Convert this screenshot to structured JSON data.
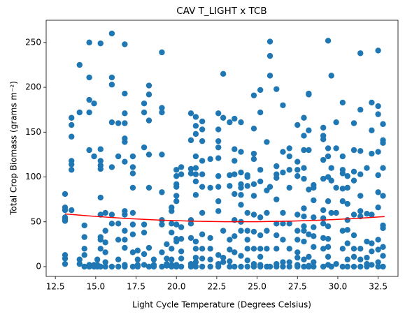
{
  "chart_data": {
    "type": "scatter",
    "title": "CAV T_LIGHT x TCB",
    "xlabel": "Light Cycle Temperature (Degrees Celsius)",
    "ylabel": "Total Crop Biomass (grams m⁻²)",
    "xlim": [
      11.93,
      33.73
    ],
    "ylim": [
      -10.9,
      274.8
    ],
    "xticks": [
      12.5,
      {
        "value": 15,
        "label": "15.0"
      },
      17.5,
      {
        "value": 20,
        "label": "20.0"
      },
      22.5,
      {
        "value": 25,
        "label": "25.0"
      },
      27.5,
      {
        "value": 30,
        "label": "30.0"
      },
      32.5
    ],
    "yticks": [
      0,
      50,
      100,
      150,
      200,
      250
    ],
    "grid": false,
    "series": [
      {
        "kind": "points",
        "color": "#1f77b4",
        "x": [
          13.1,
          13.1,
          13.1,
          13.1,
          13.1,
          13.1,
          13.1,
          13.1,
          13.1,
          13.5,
          13.5,
          13.5,
          13.5,
          13.5,
          13.5,
          13.5,
          14.0,
          14.0,
          14.0,
          14.0,
          14.3,
          14.3,
          14.3,
          14.3,
          14.3,
          14.6,
          14.6,
          14.6,
          14.6,
          14.6,
          14.6,
          14.6,
          14.9,
          14.9,
          14.9,
          14.9,
          15.1,
          15.1,
          15.1,
          15.3,
          15.3,
          15.3,
          15.3,
          15.3,
          15.3,
          15.3,
          15.3,
          15.3,
          15.3,
          15.3,
          15.6,
          15.6,
          15.6,
          15.6,
          15.6,
          15.6,
          16.0,
          16.0,
          16.0,
          16.0,
          16.0,
          16.0,
          16.0,
          16.0,
          16.4,
          16.4,
          16.4,
          16.4,
          16.4,
          16.4,
          16.8,
          16.8,
          16.8,
          16.8,
          16.8,
          16.8,
          16.8,
          16.8,
          16.8,
          16.8,
          16.8,
          16.8,
          16.8,
          16.8,
          17.3,
          17.3,
          17.3,
          17.3,
          17.3,
          17.3,
          17.3,
          17.3,
          17.3,
          17.6,
          17.6,
          17.6,
          17.6,
          18.0,
          18.0,
          18.0,
          18.0,
          18.0,
          18.0,
          18.0,
          18.3,
          18.3,
          18.3,
          18.3,
          18.3,
          18.3,
          18.3,
          18.6,
          18.6,
          18.6,
          19.1,
          19.1,
          19.1,
          19.1,
          19.1,
          19.1,
          19.1,
          19.1,
          19.1,
          19.4,
          19.4,
          19.4,
          19.4,
          19.7,
          19.7,
          19.7,
          19.7,
          19.7,
          19.7,
          19.7,
          19.7,
          20.0,
          20.0,
          20.0,
          20.0,
          20.0,
          20.0,
          20.0,
          20.0,
          20.0,
          20.0,
          20.0,
          20.3,
          20.3,
          20.3,
          20.3,
          20.3,
          20.3,
          20.3,
          20.9,
          20.9,
          20.9,
          20.9,
          20.9,
          20.9,
          20.9,
          20.9,
          20.9,
          21.2,
          21.2,
          21.2,
          21.2,
          21.2,
          21.2,
          21.2,
          21.2,
          21.2,
          21.2,
          21.2,
          21.2,
          21.2,
          21.6,
          21.6,
          21.6,
          21.6,
          21.6,
          21.6,
          21.6,
          21.6,
          21.6,
          21.6,
          21.6,
          22.1,
          22.1,
          22.1,
          22.1,
          22.1,
          22.1,
          22.6,
          22.6,
          22.6,
          22.6,
          22.6,
          22.6,
          22.6,
          22.6,
          22.6,
          22.6,
          22.6,
          22.6,
          22.9,
          22.9,
          22.9,
          22.9,
          22.9,
          23.3,
          23.3,
          23.3,
          23.3,
          23.3,
          23.3,
          23.3,
          23.6,
          23.6,
          23.6,
          23.6,
          23.6,
          23.6,
          23.6,
          23.6,
          23.6,
          24.0,
          24.0,
          24.0,
          24.0,
          24.0,
          24.0,
          24.0,
          24.0,
          24.0,
          24.0,
          24.0,
          24.4,
          24.4,
          24.4,
          24.4,
          24.4,
          24.4,
          24.4,
          24.4,
          24.4,
          24.8,
          24.8,
          24.8,
          24.8,
          24.8,
          24.8,
          24.8,
          24.8,
          24.8,
          24.8,
          24.8,
          25.2,
          25.2,
          25.2,
          25.2,
          25.2,
          25.2,
          25.2,
          25.2,
          25.2,
          25.2,
          25.6,
          25.6,
          25.6,
          25.6,
          25.6,
          25.6,
          25.8,
          25.8,
          25.8,
          25.8,
          25.8,
          26.2,
          26.2,
          26.2,
          26.2,
          26.2,
          26.2,
          26.2,
          26.2,
          26.2,
          26.2,
          26.6,
          26.6,
          26.6,
          26.6,
          26.6,
          26.6,
          26.6,
          26.6,
          27.0,
          27.0,
          27.0,
          27.0,
          27.0,
          27.0,
          27.0,
          27.0,
          27.5,
          27.5,
          27.5,
          27.5,
          27.5,
          27.5,
          27.5,
          27.5,
          27.5,
          27.5,
          27.5,
          27.9,
          27.9,
          27.9,
          27.9,
          27.9,
          27.9,
          27.9,
          27.9,
          27.9,
          27.9,
          27.9,
          27.9,
          28.2,
          28.2,
          28.2,
          28.2,
          28.2,
          28.2,
          28.2,
          28.2,
          28.2,
          28.5,
          28.5,
          28.5,
          28.5,
          28.5,
          28.5,
          28.5,
          28.5,
          28.5,
          29.1,
          29.1,
          29.1,
          29.1,
          29.1,
          29.1,
          29.1,
          29.1,
          29.1,
          29.1,
          29.1,
          29.4,
          29.4,
          29.4,
          29.4,
          29.4,
          29.4,
          29.4,
          29.4,
          29.4,
          29.4,
          29.6,
          29.6,
          29.6,
          29.6,
          29.6,
          29.9,
          29.9,
          29.9,
          29.9,
          29.9,
          30.3,
          30.3,
          30.3,
          30.3,
          30.3,
          30.3,
          30.3,
          30.3,
          30.3,
          30.6,
          30.6,
          30.6,
          30.6,
          30.6,
          30.6,
          30.6,
          30.6,
          31.0,
          31.0,
          31.0,
          31.0,
          31.0,
          31.0,
          31.0,
          31.0,
          31.0,
          31.4,
          31.4,
          31.4,
          31.4,
          31.4,
          31.4,
          31.4,
          31.4,
          31.4,
          31.4,
          31.8,
          31.8,
          31.8,
          31.8,
          31.8,
          31.8,
          32.1,
          32.1,
          32.1,
          32.1,
          32.1,
          32.1,
          32.1,
          32.5,
          32.5,
          32.5,
          32.5,
          32.5,
          32.5,
          32.5,
          32.5,
          32.5,
          32.5,
          32.5,
          32.8,
          32.8,
          32.8,
          32.8,
          32.8,
          32.8,
          32.8,
          32.8,
          32.8,
          32.8
        ],
        "values": [
          81,
          66,
          63,
          55,
          51,
          53,
          13,
          9,
          3,
          166,
          158,
          145,
          118,
          114,
          108,
          63,
          225,
          172,
          8,
          3,
          46,
          33,
          20,
          13,
          0,
          250,
          211,
          186,
          172,
          130,
          0,
          2,
          182,
          123,
          2,
          0,
          0,
          8,
          2,
          249,
          131,
          118,
          113,
          109,
          77,
          58,
          33,
          30,
          20,
          0,
          60,
          40,
          27,
          16,
          5,
          0,
          260,
          211,
          203,
          161,
          111,
          58,
          48,
          0,
          160,
          123,
          48,
          30,
          8,
          0,
          248,
          193,
          171,
          160,
          143,
          139,
          117,
          62,
          58,
          40,
          30,
          21,
          2,
          0,
          123,
          111,
          104,
          88,
          60,
          47,
          36,
          16,
          0,
          18,
          8,
          2,
          0,
          182,
          172,
          133,
          47,
          38,
          14,
          2,
          202,
          192,
          163,
          125,
          88,
          21,
          0,
          8,
          2,
          0,
          239,
          177,
          172,
          125,
          83,
          52,
          47,
          16,
          0,
          25,
          9,
          3,
          1,
          66,
          62,
          48,
          38,
          20,
          8,
          2,
          0,
          108,
          101,
          92,
          89,
          79,
          73,
          47,
          31,
          28,
          2,
          0,
          111,
          103,
          44,
          31,
          17,
          9,
          0,
          171,
          141,
          109,
          104,
          52,
          48,
          32,
          3,
          0,
          167,
          157,
          148,
          123,
          110,
          103,
          95,
          80,
          28,
          20,
          10,
          5,
          0,
          162,
          153,
          140,
          118,
          103,
          89,
          60,
          36,
          20,
          9,
          0,
          120,
          88,
          32,
          20,
          8,
          0,
          171,
          153,
          140,
          133,
          121,
          101,
          89,
          73,
          62,
          13,
          3,
          0,
          215,
          166,
          40,
          10,
          5,
          161,
          102,
          90,
          30,
          19,
          6,
          0,
          165,
          131,
          118,
          103,
          81,
          52,
          34,
          16,
          0,
          161,
          128,
          105,
          92,
          88,
          69,
          80,
          50,
          40,
          12,
          0,
          102,
          100,
          90,
          60,
          40,
          30,
          20,
          7,
          0,
          191,
          154,
          126,
          120,
          92,
          79,
          58,
          39,
          20,
          3,
          0,
          197,
          172,
          108,
          95,
          55,
          35,
          20,
          11,
          2,
          0,
          139,
          85,
          60,
          40,
          20,
          0,
          251,
          235,
          213,
          89,
          0,
          198,
          112,
          103,
          99,
          75,
          48,
          35,
          20,
          3,
          0,
          180,
          128,
          105,
          60,
          48,
          30,
          5,
          0,
          132,
          123,
          108,
          88,
          48,
          20,
          5,
          0,
          158,
          117,
          108,
          101,
          58,
          40,
          30,
          16,
          10,
          2,
          0,
          166,
          146,
          130,
          110,
          98,
          65,
          56,
          45,
          40,
          28,
          8,
          0,
          193,
          192,
          152,
          130,
          86,
          36,
          11,
          1,
          0,
          91,
          88,
          74,
          55,
          44,
          34,
          22,
          5,
          0,
          155,
          146,
          142,
          119,
          98,
          63,
          54,
          48,
          32,
          20,
          0,
          252,
          132,
          123,
          100,
          73,
          45,
          31,
          22,
          11,
          2,
          213,
          110,
          96,
          60,
          0,
          161,
          132,
          88,
          60,
          3,
          183,
          123,
          108,
          104,
          87,
          73,
          40,
          20,
          0,
          101,
          88,
          70,
          52,
          41,
          26,
          8,
          0,
          160,
          130,
          106,
          96,
          58,
          35,
          20,
          11,
          0,
          238,
          175,
          129,
          103,
          79,
          62,
          56,
          20,
          8,
          0,
          110,
          59,
          28,
          10,
          3,
          0,
          183,
          152,
          126,
          58,
          26,
          17,
          2,
          241,
          179,
          170,
          128,
          102,
          83,
          66,
          30,
          19,
          5,
          0,
          159,
          141,
          138,
          110,
          79,
          46,
          43,
          22,
          12,
          0
        ]
      },
      {
        "kind": "line",
        "color": "#ff0000",
        "x": [
          13.1,
          15,
          17,
          19,
          21,
          23,
          25,
          27,
          29,
          31,
          32.9
        ],
        "values": [
          58.8,
          56.0,
          53.6,
          51.9,
          50.7,
          50.1,
          50.1,
          50.7,
          51.9,
          53.6,
          55.9
        ]
      }
    ]
  }
}
